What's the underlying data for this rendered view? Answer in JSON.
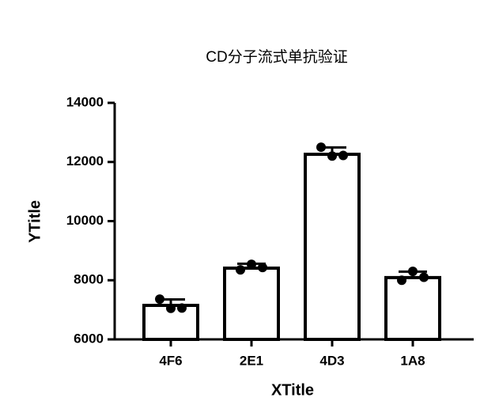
{
  "chart_data": {
    "type": "bar",
    "title": "CD分子流式单抗验证",
    "x_label": "XTitle",
    "y_label": "YTitle",
    "categories": [
      "4F6",
      "2E1",
      "4D3",
      "1A8"
    ],
    "values": [
      7150,
      8410,
      12260,
      8090
    ],
    "errors": [
      200,
      150,
      230,
      200
    ],
    "points": [
      [
        7360,
        7050,
        7060
      ],
      [
        8350,
        8540,
        8430
      ],
      [
        12500,
        12200,
        12220
      ],
      [
        8000,
        8300,
        8100
      ]
    ],
    "color": "#000000",
    "ylim": [
      6000,
      14000
    ],
    "yticks": [
      6000,
      8000,
      10000,
      12000,
      14000
    ],
    "grid": false
  }
}
